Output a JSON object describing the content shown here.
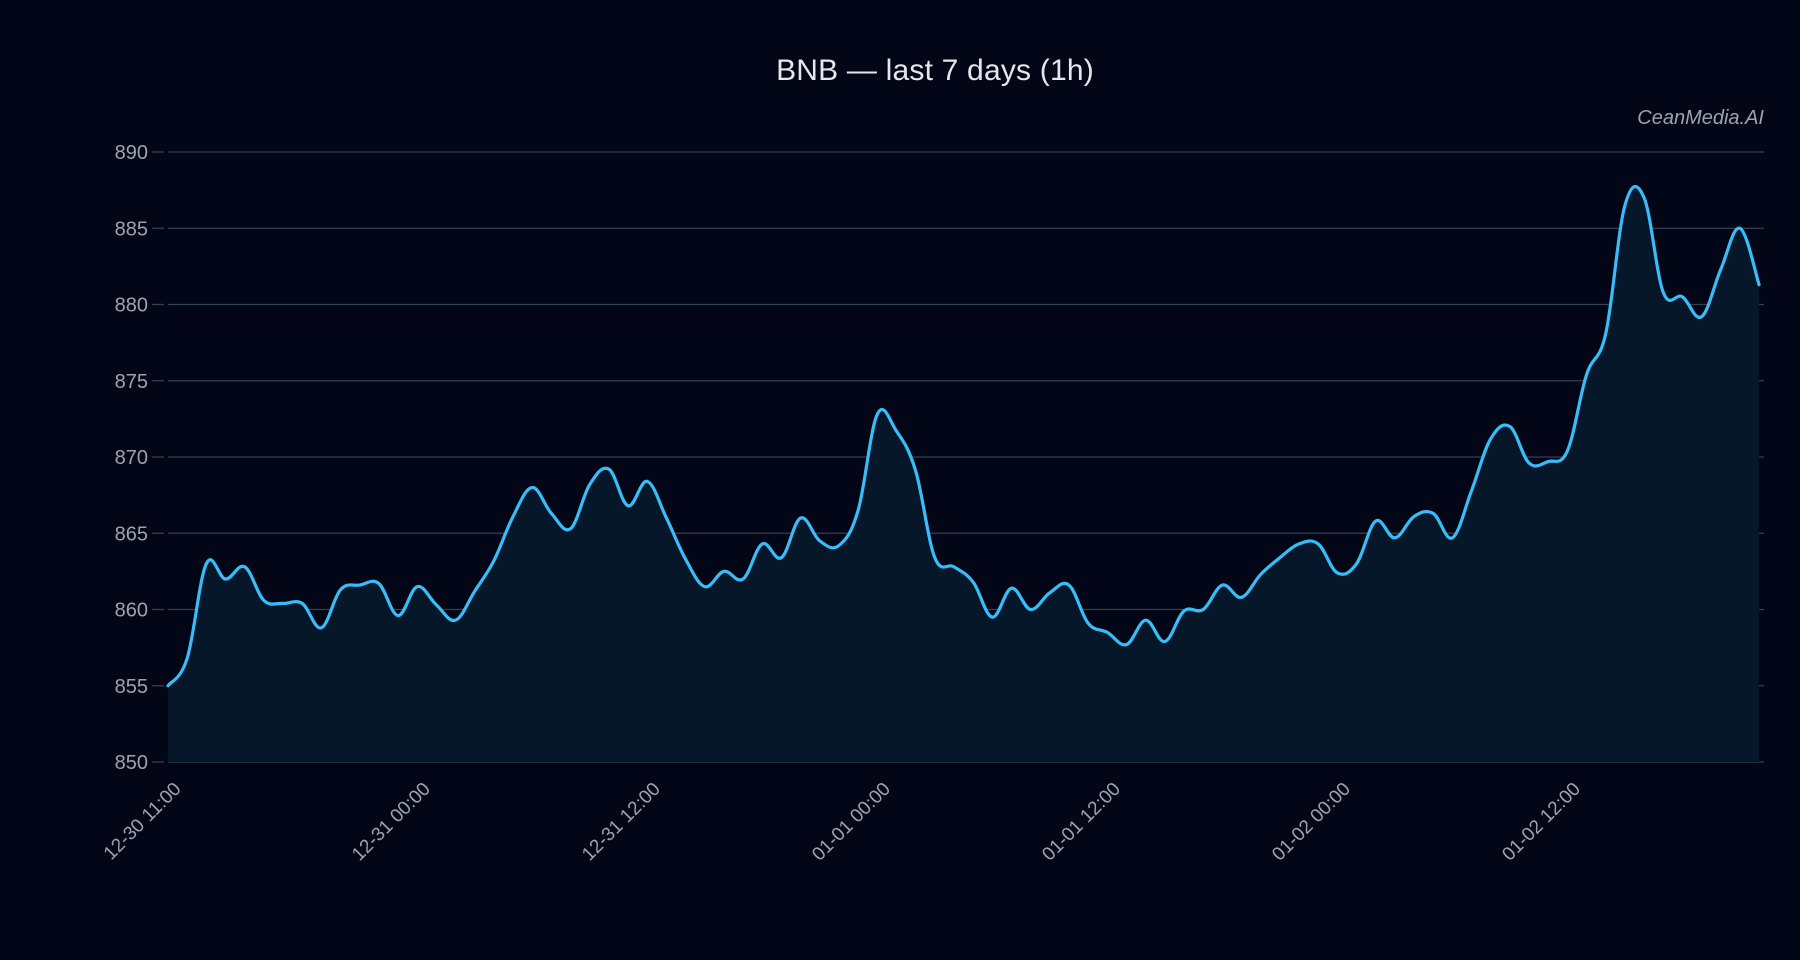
{
  "title": "BNB — last 7 days (1h)",
  "watermark": "CeanMedia.AI",
  "colors": {
    "background": "#020617",
    "line": "#38bdf8",
    "area": "#06172a",
    "grid": "#334155",
    "tick_text": "#9ca3af"
  },
  "chart_data": {
    "type": "area",
    "title": "BNB — last 7 days (1h)",
    "xlabel": "",
    "ylabel": "",
    "ylim": [
      850,
      890
    ],
    "yticks": [
      850,
      855,
      860,
      865,
      870,
      875,
      880,
      885,
      890
    ],
    "xtick_labels": [
      "12-30 11:00",
      "12-31 00:00",
      "12-31 12:00",
      "01-01 00:00",
      "01-01 12:00",
      "01-02 00:00",
      "01-02 12:00"
    ],
    "xtick_hour_index": [
      0,
      13,
      25,
      37,
      49,
      61,
      73
    ],
    "grid": true,
    "legend": null,
    "interval": "1h",
    "start": "12-30 11:00",
    "values": [
      855.0,
      856.8,
      863.0,
      862.0,
      862.8,
      860.6,
      860.4,
      860.4,
      858.8,
      861.3,
      861.6,
      861.7,
      859.6,
      861.5,
      860.3,
      859.3,
      861.2,
      863.2,
      866.1,
      868.0,
      866.3,
      865.3,
      868.2,
      869.2,
      866.8,
      868.4,
      866.0,
      863.3,
      861.5,
      862.5,
      862.0,
      864.3,
      863.4,
      866.0,
      864.5,
      864.2,
      866.5,
      872.8,
      871.7,
      869.1,
      863.4,
      862.8,
      861.8,
      859.5,
      861.4,
      860.0,
      861.1,
      861.6,
      859.1,
      858.5,
      857.7,
      859.3,
      857.9,
      859.9,
      860.0,
      861.6,
      860.8,
      862.3,
      863.4,
      864.3,
      864.3,
      862.4,
      863.0,
      865.8,
      864.7,
      866.1,
      866.3,
      864.7,
      867.8,
      871.2,
      872.0,
      869.6,
      869.7,
      870.4,
      875.4,
      878.1,
      886.5,
      887.0,
      880.8,
      880.5,
      879.2,
      882.3,
      885.0,
      881.3
    ]
  }
}
